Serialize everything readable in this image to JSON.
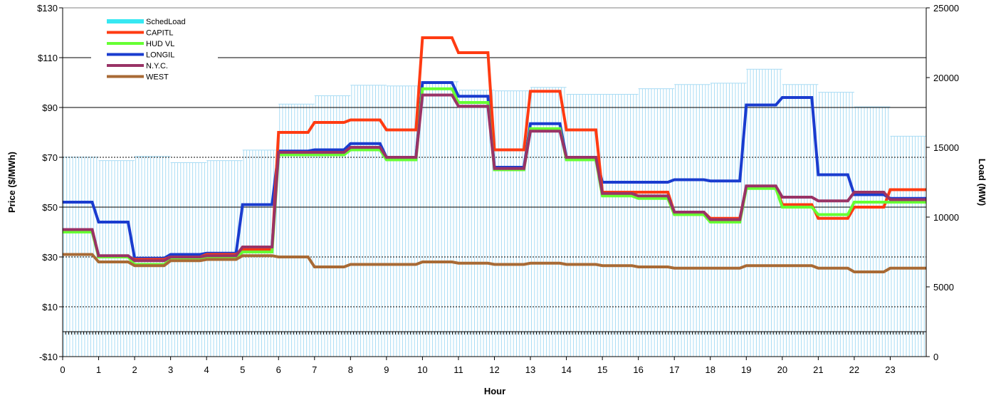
{
  "chart_data": {
    "type": "line",
    "xlabel": "Hour",
    "ylabel": "Price ($/MWh)",
    "y2label": "Load (MW)",
    "x_ticks": [
      "0",
      "1",
      "2",
      "3",
      "4",
      "5",
      "6",
      "7",
      "8",
      "9",
      "10",
      "11",
      "12",
      "13",
      "14",
      "15",
      "16",
      "17",
      "18",
      "19",
      "20",
      "21",
      "22",
      "23"
    ],
    "y_ticks": [
      "-$10",
      "$10",
      "$30",
      "$50",
      "$70",
      "$90",
      "$110",
      "$130"
    ],
    "y2_ticks": [
      "0",
      "5000",
      "10000",
      "15000",
      "20000",
      "25000"
    ],
    "ylim": [
      -10,
      130
    ],
    "y2lim": [
      0,
      25000
    ],
    "xlim": [
      0,
      24
    ],
    "grid": "horizontal",
    "legend_position": "top-left",
    "load_series": {
      "name": "SchedLoad",
      "color": "#37e8f2",
      "values": [
        14300,
        14050,
        14350,
        13900,
        14050,
        14800,
        18100,
        18700,
        19450,
        19400,
        19700,
        19100,
        19050,
        19300,
        18800,
        18800,
        19200,
        19500,
        19600,
        20600,
        19500,
        18950,
        17900,
        15800
      ]
    },
    "series": [
      {
        "name": "CAPITL",
        "color": "#ff3b12",
        "values": [
          41,
          30,
          29,
          30,
          31,
          33,
          80,
          84,
          85,
          81,
          118,
          112,
          73,
          96.5,
          81,
          56,
          56,
          48,
          45.5,
          58,
          51,
          45.5,
          50,
          57
        ]
      },
      {
        "name": "HUD VL",
        "color": "#66ff33",
        "values": [
          40,
          30,
          27,
          29,
          29.5,
          32,
          71,
          71,
          73,
          69,
          97.5,
          92,
          65,
          81.5,
          69,
          54.5,
          53.5,
          47,
          44,
          57.5,
          50,
          47,
          52,
          52
        ]
      },
      {
        "name": "LONGIL",
        "color": "#1a3ccf",
        "values": [
          52,
          44,
          29.5,
          31,
          31.5,
          51,
          72.5,
          73,
          75.5,
          70,
          100,
          94.5,
          66,
          83.5,
          70,
          60,
          60,
          61,
          60.5,
          91,
          94,
          63,
          55,
          53.5
        ]
      },
      {
        "name": "N.Y.C.",
        "color": "#993366",
        "values": [
          41,
          30.5,
          28.5,
          30,
          30.5,
          34,
          72,
          72,
          74,
          70,
          95,
          90.5,
          65.5,
          80.5,
          70,
          55.5,
          54.5,
          48,
          45,
          58.5,
          54,
          52.5,
          56,
          53
        ]
      },
      {
        "name": "WEST",
        "color": "#a86a35",
        "values": [
          31,
          28,
          26.5,
          28.5,
          29,
          30.5,
          30,
          26,
          27,
          27,
          28,
          27.5,
          27,
          27.5,
          27,
          26.5,
          26,
          25.5,
          25.5,
          26.5,
          26.5,
          25.5,
          24,
          25.5
        ]
      }
    ]
  }
}
